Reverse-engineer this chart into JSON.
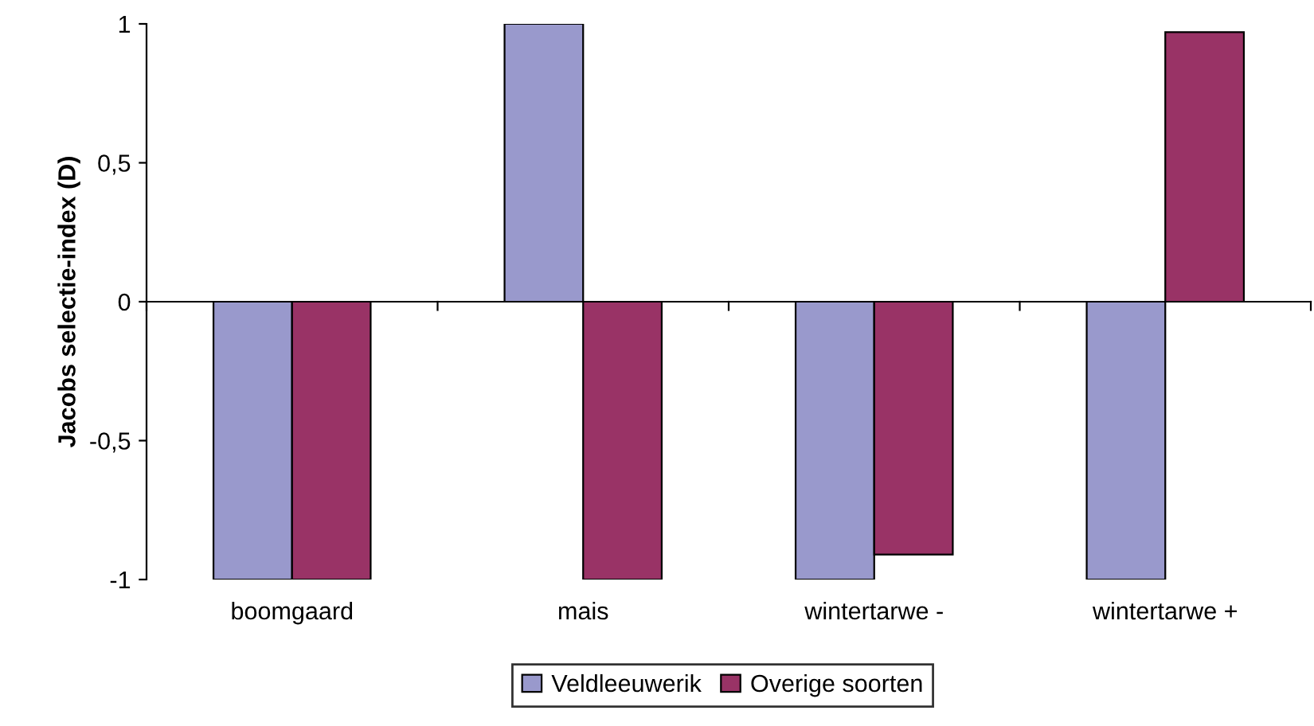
{
  "chart_data": {
    "type": "bar",
    "ylabel": "Jacobs selectie-index (D)",
    "categories": [
      "boomgaard",
      "mais",
      "wintertarwe -",
      "wintertarwe +"
    ],
    "series": [
      {
        "name": "Veldleeuwerik",
        "color": "#9999cc",
        "values": [
          -1,
          1,
          -1,
          -1
        ]
      },
      {
        "name": "Overige soorten",
        "color": "#993366",
        "values": [
          -1,
          -1,
          -0.91,
          0.97
        ]
      }
    ],
    "ylim": [
      -1,
      1
    ],
    "yticks": [
      {
        "value": -1,
        "label": "-1"
      },
      {
        "value": -0.5,
        "label": "-0,5"
      },
      0,
      {
        "value": 0.5,
        "label": "0,5"
      },
      1
    ],
    "legend": "bottom"
  }
}
